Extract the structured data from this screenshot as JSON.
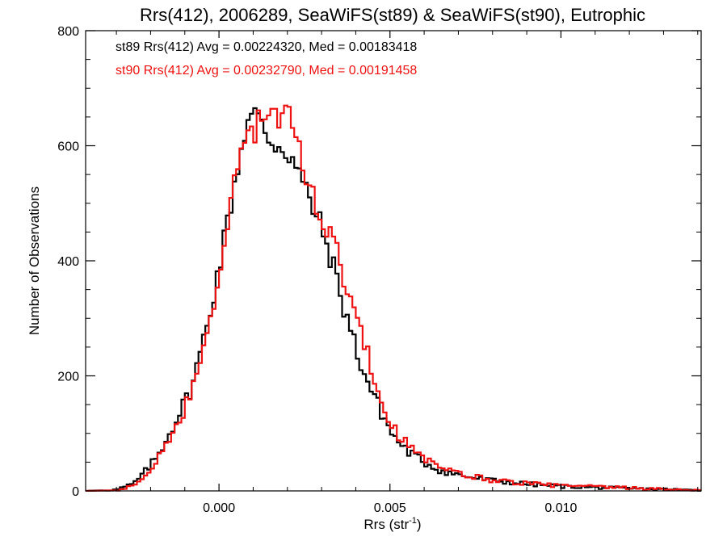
{
  "chart_data": {
    "type": "line",
    "style": "step-histogram",
    "title": "Rrs(412), 2006289, SeaWiFS(st89) & SeaWiFS(st90), Eutrophic",
    "xlabel_base": "Rrs (str",
    "xlabel_sup": "-1",
    "xlabel_tail": ")",
    "ylabel": "Number of Observations",
    "xlim": [
      -0.0039,
      0.0141
    ],
    "ylim": [
      0,
      800
    ],
    "x_ticks": [
      {
        "value": 0.0,
        "label": "0.000"
      },
      {
        "value": 0.005,
        "label": "0.005"
      },
      {
        "value": 0.01,
        "label": "0.010"
      }
    ],
    "y_ticks": [
      {
        "value": 0,
        "label": "0"
      },
      {
        "value": 200,
        "label": "200"
      },
      {
        "value": 400,
        "label": "400"
      },
      {
        "value": 600,
        "label": "600"
      },
      {
        "value": 800,
        "label": "800"
      }
    ],
    "grid": false,
    "legend_position": "top-left",
    "bin_width": 0.0001,
    "series": [
      {
        "name": "st89",
        "color": "#000000",
        "legend_text": "st89 Rrs(412) Avg = 0.00224320, Med = 0.00183418",
        "points": [
          [
            -0.0039,
            0
          ],
          [
            -0.003,
            2
          ],
          [
            -0.0025,
            12
          ],
          [
            -0.0022,
            30
          ],
          [
            -0.0018,
            60
          ],
          [
            -0.0015,
            95
          ],
          [
            -0.0012,
            130
          ],
          [
            -0.0008,
            180
          ],
          [
            -0.0005,
            250
          ],
          [
            -0.0002,
            330
          ],
          [
            0.0,
            390
          ],
          [
            0.0002,
            450
          ],
          [
            0.0004,
            520
          ],
          [
            0.0006,
            580
          ],
          [
            0.0008,
            640
          ],
          [
            0.001,
            655
          ],
          [
            0.0012,
            640
          ],
          [
            0.0015,
            610
          ],
          [
            0.0018,
            600
          ],
          [
            0.0021,
            585
          ],
          [
            0.0024,
            540
          ],
          [
            0.0027,
            500
          ],
          [
            0.003,
            455
          ],
          [
            0.0033,
            400
          ],
          [
            0.0036,
            330
          ],
          [
            0.0039,
            270
          ],
          [
            0.0042,
            210
          ],
          [
            0.0045,
            170
          ],
          [
            0.0048,
            130
          ],
          [
            0.0051,
            95
          ],
          [
            0.0055,
            70
          ],
          [
            0.006,
            50
          ],
          [
            0.0065,
            35
          ],
          [
            0.007,
            28
          ],
          [
            0.0075,
            22
          ],
          [
            0.008,
            18
          ],
          [
            0.009,
            12
          ],
          [
            0.01,
            8
          ],
          [
            0.011,
            6
          ],
          [
            0.012,
            4
          ],
          [
            0.013,
            3
          ],
          [
            0.0141,
            1
          ]
        ]
      },
      {
        "name": "st90",
        "color": "#ee1111",
        "legend_text": "st90 Rrs(412) Avg = 0.00232790, Med = 0.00191458",
        "points": [
          [
            -0.0039,
            0
          ],
          [
            -0.003,
            1
          ],
          [
            -0.0025,
            8
          ],
          [
            -0.0022,
            22
          ],
          [
            -0.0018,
            52
          ],
          [
            -0.0015,
            85
          ],
          [
            -0.0012,
            118
          ],
          [
            -0.0008,
            170
          ],
          [
            -0.0005,
            240
          ],
          [
            -0.0002,
            320
          ],
          [
            0.0,
            380
          ],
          [
            0.0002,
            440
          ],
          [
            0.0004,
            510
          ],
          [
            0.0006,
            580
          ],
          [
            0.0008,
            620
          ],
          [
            0.001,
            630
          ],
          [
            0.0012,
            640
          ],
          [
            0.0015,
            655
          ],
          [
            0.0018,
            650
          ],
          [
            0.0021,
            640
          ],
          [
            0.0024,
            580
          ],
          [
            0.0027,
            520
          ],
          [
            0.003,
            480
          ],
          [
            0.0033,
            440
          ],
          [
            0.0036,
            385
          ],
          [
            0.0039,
            330
          ],
          [
            0.0042,
            265
          ],
          [
            0.0045,
            205
          ],
          [
            0.0048,
            150
          ],
          [
            0.0051,
            110
          ],
          [
            0.0055,
            80
          ],
          [
            0.006,
            55
          ],
          [
            0.0065,
            38
          ],
          [
            0.007,
            30
          ],
          [
            0.0075,
            24
          ],
          [
            0.008,
            19
          ],
          [
            0.009,
            13
          ],
          [
            0.01,
            9
          ],
          [
            0.011,
            7
          ],
          [
            0.012,
            5
          ],
          [
            0.013,
            3
          ],
          [
            0.0141,
            1
          ]
        ]
      }
    ]
  }
}
